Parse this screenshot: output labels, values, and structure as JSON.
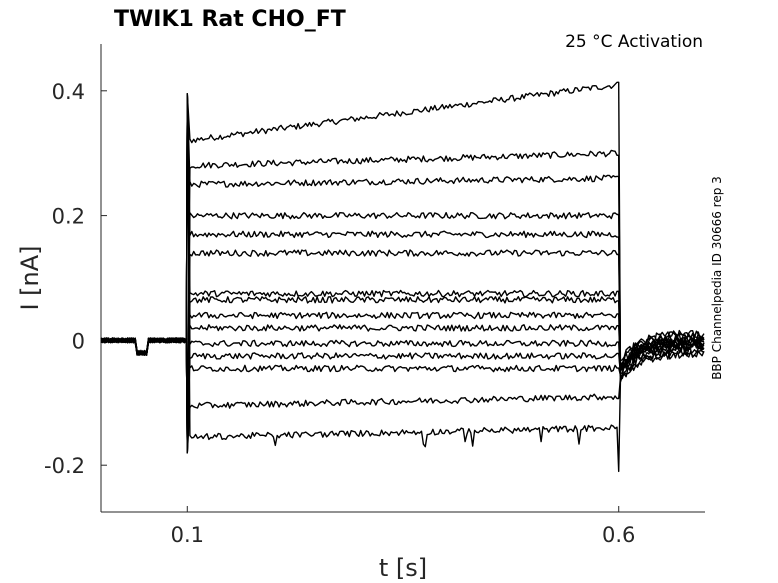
{
  "chart_data": {
    "type": "line",
    "title": "TWIK1  Rat  CHO_FT",
    "subtitle": "25 °C  Activation",
    "side_note": "BBP Channelpedia ID 30666 rep 3",
    "xlabel": "t [s]",
    "ylabel": "I [nA]",
    "xlim": [
      0.0,
      0.7
    ],
    "ylim": [
      -0.275,
      0.475
    ],
    "xticks": [
      0.1,
      0.6
    ],
    "xtick_labels": [
      "0.1",
      "0.6"
    ],
    "yticks": [
      0.4,
      0.2,
      0,
      -0.2
    ],
    "ytick_labels": [
      "0.4",
      "0.2",
      "0",
      "-0.2"
    ],
    "grid": false,
    "legend": "none",
    "step_start_s": 0.1,
    "step_end_s": 0.6,
    "series": [
      {
        "steady_nA": [
          0.32,
          0.41
        ],
        "tail_nA": 0.01
      },
      {
        "steady_nA": [
          0.28,
          0.3
        ],
        "tail_nA": 0.01
      },
      {
        "steady_nA": [
          0.25,
          0.26
        ],
        "tail_nA": 0.0
      },
      {
        "steady_nA": [
          0.2,
          0.2
        ],
        "tail_nA": 0.0
      },
      {
        "steady_nA": [
          0.17,
          0.17
        ],
        "tail_nA": 0.0
      },
      {
        "steady_nA": [
          0.14,
          0.14
        ],
        "tail_nA": -0.005
      },
      {
        "steady_nA": [
          0.075,
          0.075
        ],
        "tail_nA": 0.005
      },
      {
        "steady_nA": [
          0.065,
          0.065
        ],
        "tail_nA": 0.0
      },
      {
        "steady_nA": [
          0.04,
          0.04
        ],
        "tail_nA": -0.005
      },
      {
        "steady_nA": [
          0.02,
          0.02
        ],
        "tail_nA": 0.0
      },
      {
        "steady_nA": [
          -0.005,
          -0.005
        ],
        "tail_nA": -0.01
      },
      {
        "steady_nA": [
          -0.025,
          -0.025
        ],
        "tail_nA": -0.01
      },
      {
        "steady_nA": [
          -0.045,
          -0.045
        ],
        "tail_nA": -0.015
      },
      {
        "steady_nA": [
          -0.105,
          -0.09
        ],
        "tail_nA": -0.02
      },
      {
        "steady_nA": [
          -0.155,
          -0.14
        ],
        "tail_nA": -0.02
      }
    ]
  }
}
